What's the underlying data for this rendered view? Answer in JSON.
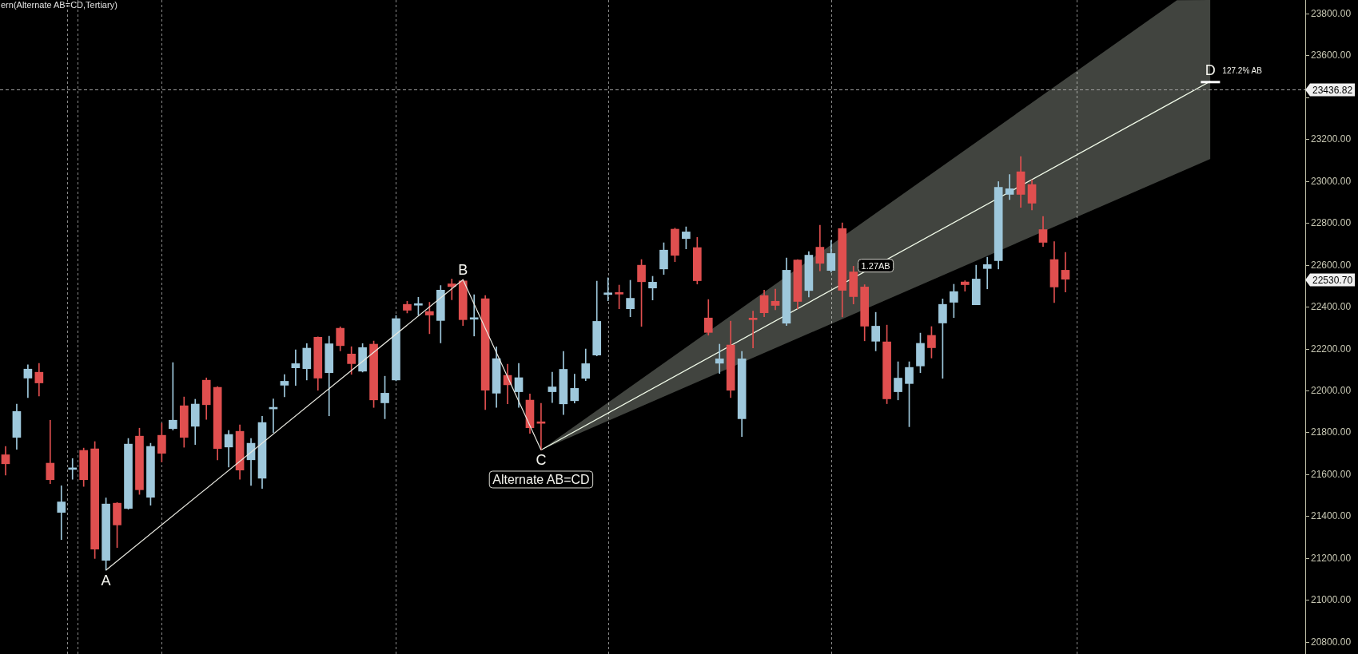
{
  "chart_data": {
    "type": "candlestick",
    "title": "ern(Alternate AB=CD,Tertiary)",
    "categories": [
      null,
      null,
      null,
      null,
      null,
      null,
      null,
      null,
      null,
      null,
      null,
      null,
      null,
      null,
      null,
      null,
      null,
      null,
      null,
      null,
      null,
      null,
      null,
      null,
      null,
      null,
      null,
      null,
      null,
      null,
      null,
      null,
      null,
      null,
      null,
      null,
      null,
      null,
      null,
      null,
      null,
      null,
      null,
      null,
      null,
      null,
      null,
      null,
      null,
      null,
      null,
      null,
      null,
      null,
      null,
      null,
      null,
      null,
      null,
      null,
      null,
      null,
      null,
      null,
      null,
      null,
      null,
      null,
      null,
      null,
      null,
      null,
      null,
      null,
      null,
      null,
      null,
      null,
      null,
      null,
      null,
      null,
      null,
      null,
      null,
      null,
      null,
      null,
      null,
      null,
      null,
      null,
      null,
      null,
      null,
      null,
      null,
      null,
      null,
      null,
      null,
      null,
      null,
      null,
      null,
      null,
      null,
      null,
      null,
      null,
      null,
      null,
      null,
      null,
      null,
      null,
      null
    ],
    "ylim": [
      20742,
      23864
    ],
    "yticks": [
      {
        "value": 20800,
        "label": "20800.00"
      },
      {
        "value": 21000,
        "label": "21000.00"
      },
      {
        "value": 21200,
        "label": "21200.00"
      },
      {
        "value": 21400,
        "label": "21400.00"
      },
      {
        "value": 21600,
        "label": "21600.00"
      },
      {
        "value": 21800,
        "label": "21800.00"
      },
      {
        "value": 22000,
        "label": "22000.00"
      },
      {
        "value": 22200,
        "label": "22200.00"
      },
      {
        "value": 22400,
        "label": "22400.00"
      },
      {
        "value": 22600,
        "label": "22600.00"
      },
      {
        "value": 22800,
        "label": "22800.00"
      },
      {
        "value": 23000,
        "label": "23000.00"
      },
      {
        "value": 23200,
        "label": "23200.00"
      },
      {
        "value": 23400,
        "label": null
      },
      {
        "value": 23600,
        "label": "23600.00"
      },
      {
        "value": 23800,
        "label": "23800.00"
      }
    ],
    "tick_labels": "y",
    "legend": false,
    "ohlc": [
      [
        21693,
        21733,
        21596,
        21650
      ],
      [
        21776,
        21935,
        21719,
        21900
      ],
      [
        22059,
        22123,
        21966,
        22102
      ],
      [
        22087,
        22129,
        21974,
        22036
      ],
      [
        21653,
        21858,
        21555,
        21574
      ],
      [
        21418,
        21545,
        21288,
        21468
      ],
      [
        21623,
        21675,
        21576,
        21626
      ],
      [
        21714,
        21725,
        21542,
        21574
      ],
      [
        21721,
        21756,
        21198,
        21243
      ],
      [
        21189,
        21487,
        21142,
        21458
      ],
      [
        21462,
        21465,
        21250,
        21358
      ],
      [
        21437,
        21771,
        21433,
        21744
      ],
      [
        21782,
        21820,
        21504,
        21526
      ],
      [
        21490,
        21748,
        21452,
        21733
      ],
      [
        21786,
        21843,
        21659,
        21700
      ],
      [
        21818,
        22133,
        21811,
        21858
      ],
      [
        21927,
        21969,
        21729,
        21776
      ],
      [
        21829,
        21958,
        21742,
        21935
      ],
      [
        22049,
        22060,
        21862,
        21932
      ],
      [
        22015,
        22019,
        21669,
        21723
      ],
      [
        21730,
        21809,
        21634,
        21790
      ],
      [
        21805,
        21836,
        21576,
        21620
      ],
      [
        21669,
        21771,
        21547,
        21748
      ],
      [
        21581,
        21877,
        21532,
        21847
      ],
      [
        21912,
        21960,
        21799,
        21914
      ],
      [
        22025,
        22076,
        21970,
        22044
      ],
      [
        22108,
        22194,
        22024,
        22128
      ],
      [
        22104,
        22224,
        22050,
        22202
      ],
      [
        22254,
        22256,
        22001,
        22059
      ],
      [
        22085,
        22259,
        21879,
        22223
      ],
      [
        22297,
        22304,
        22189,
        22214
      ],
      [
        22174,
        22209,
        22077,
        22128
      ],
      [
        22092,
        22224,
        22088,
        22205
      ],
      [
        22221,
        22236,
        21919,
        21955
      ],
      [
        21941,
        22068,
        21865,
        21987
      ],
      [
        22050,
        22358,
        22046,
        22343
      ],
      [
        22411,
        22426,
        22370,
        22383
      ],
      [
        22407,
        22445,
        22360,
        22410
      ],
      [
        22377,
        22421,
        22271,
        22360
      ],
      [
        22334,
        22501,
        22227,
        22479
      ],
      [
        22509,
        22532,
        22433,
        22496
      ],
      [
        22523,
        22529,
        22310,
        22338
      ],
      [
        22340,
        22457,
        22260,
        22343
      ],
      [
        22438,
        22453,
        21909,
        22001
      ],
      [
        21987,
        22208,
        21919,
        22152
      ],
      [
        22072,
        22125,
        21936,
        22027
      ],
      [
        21994,
        22129,
        21919,
        22061
      ],
      [
        21954,
        21983,
        21795,
        21822
      ],
      [
        21850,
        21939,
        21716,
        21843
      ],
      [
        21994,
        22087,
        21942,
        22017
      ],
      [
        21936,
        22186,
        21885,
        22101
      ],
      [
        21951,
        22078,
        21940,
        22010
      ],
      [
        22058,
        22198,
        22047,
        22128
      ],
      [
        22169,
        22522,
        22165,
        22330
      ],
      [
        22458,
        22538,
        22428,
        22466
      ],
      [
        22463,
        22503,
        22390,
        22460
      ],
      [
        22390,
        22526,
        22352,
        22440
      ],
      [
        22598,
        22625,
        22306,
        22519
      ],
      [
        22489,
        22545,
        22432,
        22517
      ],
      [
        22580,
        22705,
        22554,
        22670
      ],
      [
        22770,
        22775,
        22615,
        22645
      ],
      [
        22725,
        22781,
        22676,
        22757
      ],
      [
        22682,
        22731,
        22508,
        22524
      ],
      [
        22346,
        22434,
        22264,
        22277
      ],
      [
        22130,
        22221,
        22081,
        22151
      ],
      [
        22217,
        22331,
        21966,
        22001
      ],
      [
        21865,
        22186,
        21780,
        22151
      ],
      [
        22341,
        22379,
        22203,
        22338
      ],
      [
        22453,
        22479,
        22352,
        22371
      ],
      [
        22426,
        22484,
        22385,
        22406
      ],
      [
        22321,
        22632,
        22310,
        22574
      ],
      [
        22623,
        22625,
        22390,
        22425
      ],
      [
        22477,
        22663,
        22446,
        22646
      ],
      [
        22684,
        22789,
        22571,
        22607
      ],
      [
        22573,
        22716,
        22565,
        22654
      ],
      [
        22773,
        22800,
        22351,
        22478
      ],
      [
        22566,
        22593,
        22413,
        22448
      ],
      [
        22494,
        22505,
        22237,
        22307
      ],
      [
        22235,
        22373,
        22189,
        22307
      ],
      [
        22232,
        22312,
        21937,
        21960
      ],
      [
        21994,
        22137,
        21955,
        22059
      ],
      [
        22033,
        22137,
        21827,
        22110
      ],
      [
        22117,
        22274,
        22085,
        22225
      ],
      [
        22263,
        22305,
        22155,
        22204
      ],
      [
        22322,
        22437,
        22058,
        22411
      ],
      [
        22421,
        22507,
        22348,
        22472
      ],
      [
        22518,
        22524,
        22474,
        22505
      ],
      [
        22409,
        22598,
        22409,
        22532
      ],
      [
        22582,
        22636,
        22485,
        22601
      ],
      [
        22620,
        22997,
        22580,
        22970
      ],
      [
        22936,
        23031,
        22911,
        22963
      ],
      [
        23044,
        23117,
        22874,
        22936
      ],
      [
        22983,
        23005,
        22862,
        22894
      ],
      [
        22768,
        22831,
        22687,
        22707
      ],
      [
        22625,
        22711,
        22420,
        22494
      ],
      [
        22574,
        22659,
        22470,
        22531
      ],
      null,
      null,
      null,
      null,
      null,
      null,
      null,
      null,
      null,
      null,
      null,
      null,
      null,
      null,
      null,
      null,
      null,
      null,
      null,
      null,
      null
    ],
    "colors": [
      "#e04f4f",
      "#9ec8dc",
      "#9ec8dc",
      "#e04f4f",
      "#e04f4f",
      "#9ec8dc",
      "#9ec8dc",
      "#e04f4f",
      "#e04f4f",
      "#9ec8dc",
      "#e04f4f",
      "#9ec8dc",
      "#e04f4f",
      "#9ec8dc",
      "#e04f4f",
      "#9ec8dc",
      "#e04f4f",
      "#9ec8dc",
      "#e04f4f",
      "#e04f4f",
      "#9ec8dc",
      "#e04f4f",
      "#9ec8dc",
      "#9ec8dc",
      "#9ec8dc",
      "#9ec8dc",
      "#9ec8dc",
      "#9ec8dc",
      "#e04f4f",
      "#9ec8dc",
      "#e04f4f",
      "#e04f4f",
      "#9ec8dc",
      "#e04f4f",
      "#9ec8dc",
      "#9ec8dc",
      "#e04f4f",
      "#9ec8dc",
      "#e04f4f",
      "#9ec8dc",
      "#e04f4f",
      "#e04f4f",
      "#9ec8dc",
      "#e04f4f",
      "#9ec8dc",
      "#e04f4f",
      "#9ec8dc",
      "#e04f4f",
      "#e04f4f",
      "#9ec8dc",
      "#9ec8dc",
      "#9ec8dc",
      "#9ec8dc",
      "#9ec8dc",
      "#9ec8dc",
      "#e04f4f",
      "#9ec8dc",
      "#e04f4f",
      "#9ec8dc",
      "#9ec8dc",
      "#e04f4f",
      "#9ec8dc",
      "#e04f4f",
      "#e04f4f",
      "#9ec8dc",
      "#e04f4f",
      "#9ec8dc",
      "#e04f4f",
      "#e04f4f",
      "#e04f4f",
      "#9ec8dc",
      "#e04f4f",
      "#9ec8dc",
      "#e04f4f",
      "#9ec8dc",
      "#e04f4f",
      "#e04f4f",
      "#e04f4f",
      "#9ec8dc",
      "#e04f4f",
      "#9ec8dc",
      "#9ec8dc",
      "#9ec8dc",
      "#e04f4f",
      "#9ec8dc",
      "#9ec8dc",
      "#e04f4f",
      "#9ec8dc",
      "#9ec8dc",
      "#9ec8dc",
      "#9ec8dc",
      "#e04f4f",
      "#e04f4f",
      "#e04f4f",
      "#e04f4f",
      "#e04f4f",
      null,
      null,
      null,
      null,
      null,
      null,
      null,
      null,
      null,
      null,
      null,
      null,
      null,
      null,
      null,
      null,
      null,
      null,
      null,
      null,
      null
    ],
    "series": [
      {
        "type": "line",
        "color": "#f0fae8",
        "values": [
          null,
          null,
          null,
          null,
          null,
          null,
          null,
          null,
          null,
          null,
          null,
          null,
          null,
          null,
          null,
          null,
          null,
          null,
          null,
          null,
          null,
          null,
          null,
          null,
          null,
          null,
          null,
          null,
          null,
          null,
          null,
          null,
          null,
          null,
          null,
          null,
          null,
          null,
          null,
          null,
          null,
          null,
          null,
          null,
          null,
          null,
          null,
          null,
          21716,
          null,
          null,
          null,
          null,
          null,
          null,
          null,
          null,
          null,
          null,
          null,
          null,
          null,
          null,
          null,
          null,
          null,
          null,
          null,
          null,
          null,
          null,
          null,
          null,
          null,
          null,
          null,
          null,
          null,
          null,
          null,
          null,
          null,
          null,
          null,
          null,
          null,
          null,
          null,
          null,
          null,
          null,
          null,
          null,
          null,
          null,
          null,
          null,
          null,
          null,
          null,
          null,
          null,
          null,
          null,
          null,
          23388,
          null,
          null,
          23476,
          null,
          null,
          null,
          null,
          null,
          null,
          null,
          null
        ],
        "lower": [
          null,
          null,
          null,
          null,
          null,
          null,
          null,
          null,
          null,
          null,
          null,
          null,
          null,
          null,
          null,
          null,
          null,
          null,
          null,
          null,
          null,
          null,
          null,
          null,
          null,
          null,
          null,
          null,
          null,
          null,
          null,
          null,
          null,
          null,
          null,
          null,
          null,
          null,
          null,
          null,
          null,
          null,
          null,
          null,
          null,
          null,
          null,
          null,
          21716,
          null,
          null,
          null,
          null,
          null,
          null,
          null,
          null,
          null,
          null,
          null,
          null,
          null,
          null,
          null,
          null,
          null,
          null,
          null,
          null,
          null,
          null,
          null,
          null,
          null,
          null,
          null,
          null,
          null,
          null,
          null,
          null,
          null,
          null,
          null,
          null,
          null,
          null,
          null,
          null,
          null,
          null,
          null,
          null,
          null,
          null,
          null,
          null,
          null,
          null,
          null,
          null,
          null,
          null,
          null,
          null,
          23036,
          null,
          null,
          23105,
          null,
          null,
          null,
          null,
          null,
          null,
          null,
          null
        ],
        "upper": [
          null,
          null,
          null,
          null,
          null,
          null,
          null,
          null,
          null,
          null,
          null,
          null,
          null,
          null,
          null,
          null,
          null,
          null,
          null,
          null,
          null,
          null,
          null,
          null,
          null,
          null,
          null,
          null,
          null,
          null,
          null,
          null,
          null,
          null,
          null,
          null,
          null,
          null,
          null,
          null,
          null,
          null,
          null,
          null,
          null,
          null,
          null,
          null,
          21716,
          null,
          null,
          null,
          null,
          null,
          null,
          null,
          null,
          null,
          null,
          null,
          null,
          null,
          null,
          null,
          null,
          null,
          null,
          null,
          null,
          null,
          null,
          null,
          null,
          null,
          null,
          null,
          null,
          null,
          null,
          null,
          null,
          null,
          null,
          null,
          null,
          null,
          null,
          null,
          null,
          null,
          null,
          null,
          null,
          null,
          null,
          null,
          null,
          null,
          null,
          null,
          null,
          null,
          null,
          null,
          null,
          23863,
          null,
          null,
          23864,
          null,
          null,
          null,
          null,
          null,
          null,
          null,
          null
        ]
      }
    ],
    "ref_lines": [
      {
        "axis": "y",
        "value": 23436.82,
        "label": "23436.82",
        "line_style": "dashed",
        "color": "#a0a0a0"
      }
    ],
    "annotations": [
      "A",
      "B",
      "C",
      "D",
      "127.2% AB",
      "1.27AB",
      "Alternate AB=CD",
      "22530.70"
    ]
  }
}
